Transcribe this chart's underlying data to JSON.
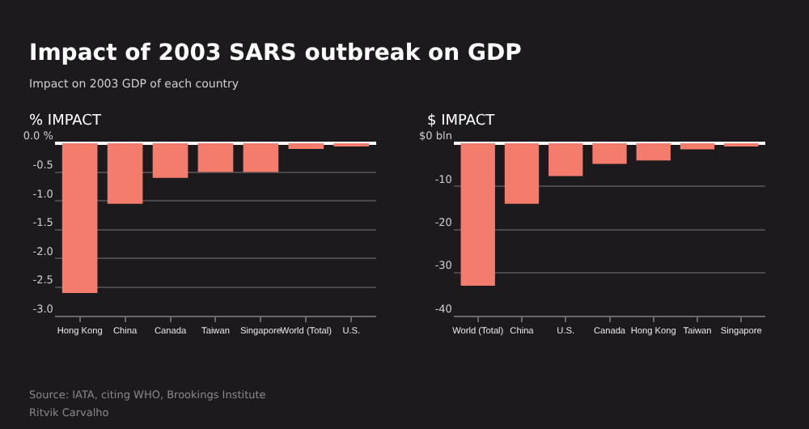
{
  "chart_data": [
    {
      "type": "bar",
      "title": "Impact of 2003 SARS outbreak on GDP",
      "subtitle": "Impact on 2003 GDP of each country",
      "ylabel": "% IMPACT",
      "categories": [
        "Hong Kong",
        "China",
        "Canada",
        "Taiwan",
        "Singapore",
        "World (Total)",
        "U.S."
      ],
      "values": [
        -2.6,
        -1.05,
        -0.6,
        -0.5,
        -0.5,
        -0.1,
        -0.05
      ],
      "color": "#f47c6c",
      "ylim": [
        -3.0,
        0
      ],
      "yticks": [
        {
          "value": 0,
          "label": "0.0 %"
        },
        -0.5,
        {
          "value": -1.0,
          "label": "-1.0"
        },
        -1.5,
        {
          "value": -2.0,
          "label": "-2.0"
        },
        -2.5,
        {
          "value": -3.0,
          "label": "-3.0"
        }
      ],
      "grid": "y",
      "annotations": [
        "Source: IATA, citing WHO, Brookings Institute",
        "Ritvik Carvalho"
      ]
    },
    {
      "type": "bar",
      "ylabel": "$ IMPACT",
      "categories": [
        "World (Total)",
        "China",
        "U.S.",
        "Canada",
        "Hong Kong",
        "Taiwan",
        "Singapore"
      ],
      "values": [
        -33,
        -14,
        -7.6,
        -4.8,
        -4,
        -1.4,
        -0.5
      ],
      "color": "#f47c6c",
      "ylim": [
        -40,
        0
      ],
      "yticks": [
        {
          "value": 0,
          "label": "$0 bln"
        },
        -10,
        -20,
        -30,
        -40
      ],
      "grid": "y"
    }
  ]
}
